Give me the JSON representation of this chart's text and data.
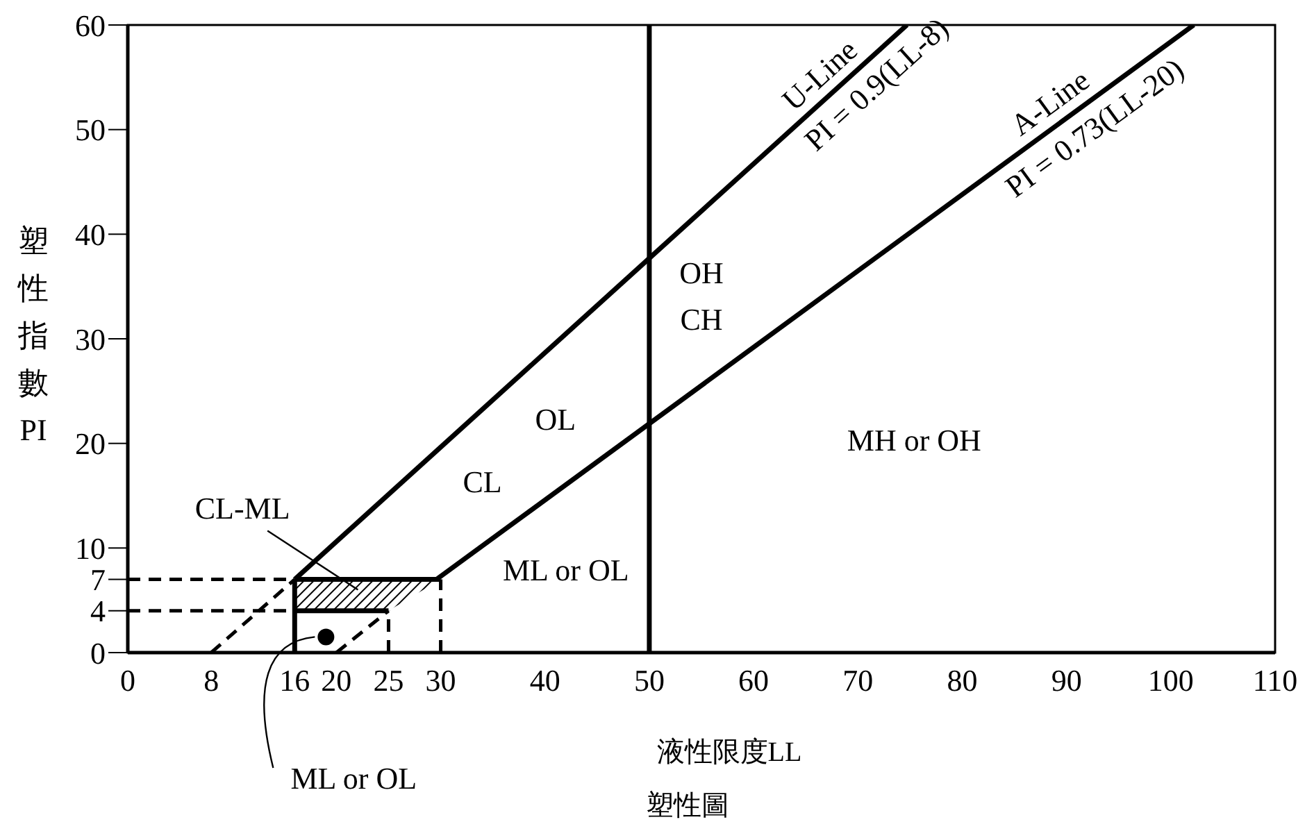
{
  "chart_data": {
    "type": "line",
    "xlabel": "液性限度LL",
    "ylabel": "塑性指數PI",
    "xlim": [
      0,
      110
    ],
    "ylim": [
      0,
      60
    ],
    "xticks": [
      0,
      8,
      16,
      20,
      25,
      30,
      40,
      50,
      60,
      70,
      80,
      90,
      100,
      110
    ],
    "yticks": [
      0,
      4,
      7,
      10,
      20,
      30,
      40,
      50,
      60
    ],
    "series": [
      {
        "color": "#000000",
        "line_style": "solid",
        "x": [
          16,
          74.7
        ],
        "values": [
          7,
          60
        ]
      },
      {
        "color": "#000000",
        "line_style": "dashed",
        "x": [
          8,
          16
        ],
        "values": [
          0,
          7
        ]
      },
      {
        "color": "#000000",
        "line_style": "solid",
        "x": [
          29.6,
          102.2
        ],
        "values": [
          7,
          60
        ]
      },
      {
        "color": "#000000",
        "line_style": "dashed",
        "x": [
          20,
          25
        ],
        "values": [
          0,
          4
        ]
      },
      {
        "color": "#000000",
        "line_style": "solid",
        "x": [
          16,
          16
        ],
        "values": [
          0,
          7
        ]
      },
      {
        "color": "#000000",
        "line_style": "solid",
        "x": [
          16,
          25
        ],
        "values": [
          4,
          4
        ]
      },
      {
        "color": "#000000",
        "line_style": "dashed",
        "x": [
          0,
          16
        ],
        "values": [
          7,
          7
        ]
      },
      {
        "color": "#000000",
        "line_style": "dashed",
        "x": [
          0,
          16
        ],
        "values": [
          4,
          4
        ]
      },
      {
        "color": "#000000",
        "line_style": "dashed",
        "x": [
          25,
          25
        ],
        "values": [
          0,
          4
        ]
      },
      {
        "color": "#000000",
        "line_style": "dashed",
        "x": [
          30,
          30
        ],
        "values": [
          0,
          7
        ]
      },
      {
        "color": "#000000",
        "line_style": "solid",
        "x": [
          16,
          25,
          30
        ],
        "values": [
          7,
          7,
          7
        ],
        "lower": [
          4,
          4,
          7
        ],
        "upper": [
          7,
          7,
          7
        ]
      },
      {
        "type": "scatter",
        "marker": "circle",
        "color": "#000000",
        "x": [
          19
        ],
        "values": [
          1.5
        ]
      }
    ],
    "ref_lines": [
      {
        "axis": "x",
        "value": 50,
        "color": "#000000",
        "line_style": "solid"
      }
    ],
    "annotations": [
      {
        "text": "ML or OL",
        "x": 19,
        "y": 1.5
      },
      "塑性圖",
      "U-Line",
      "PI = 0.9(LL-8)",
      "A-Line",
      "PI = 0.73(LL-20)",
      "OH",
      "CH",
      "OL",
      "CL",
      "MH or OH",
      "ML or OL",
      "CL-ML"
    ]
  }
}
